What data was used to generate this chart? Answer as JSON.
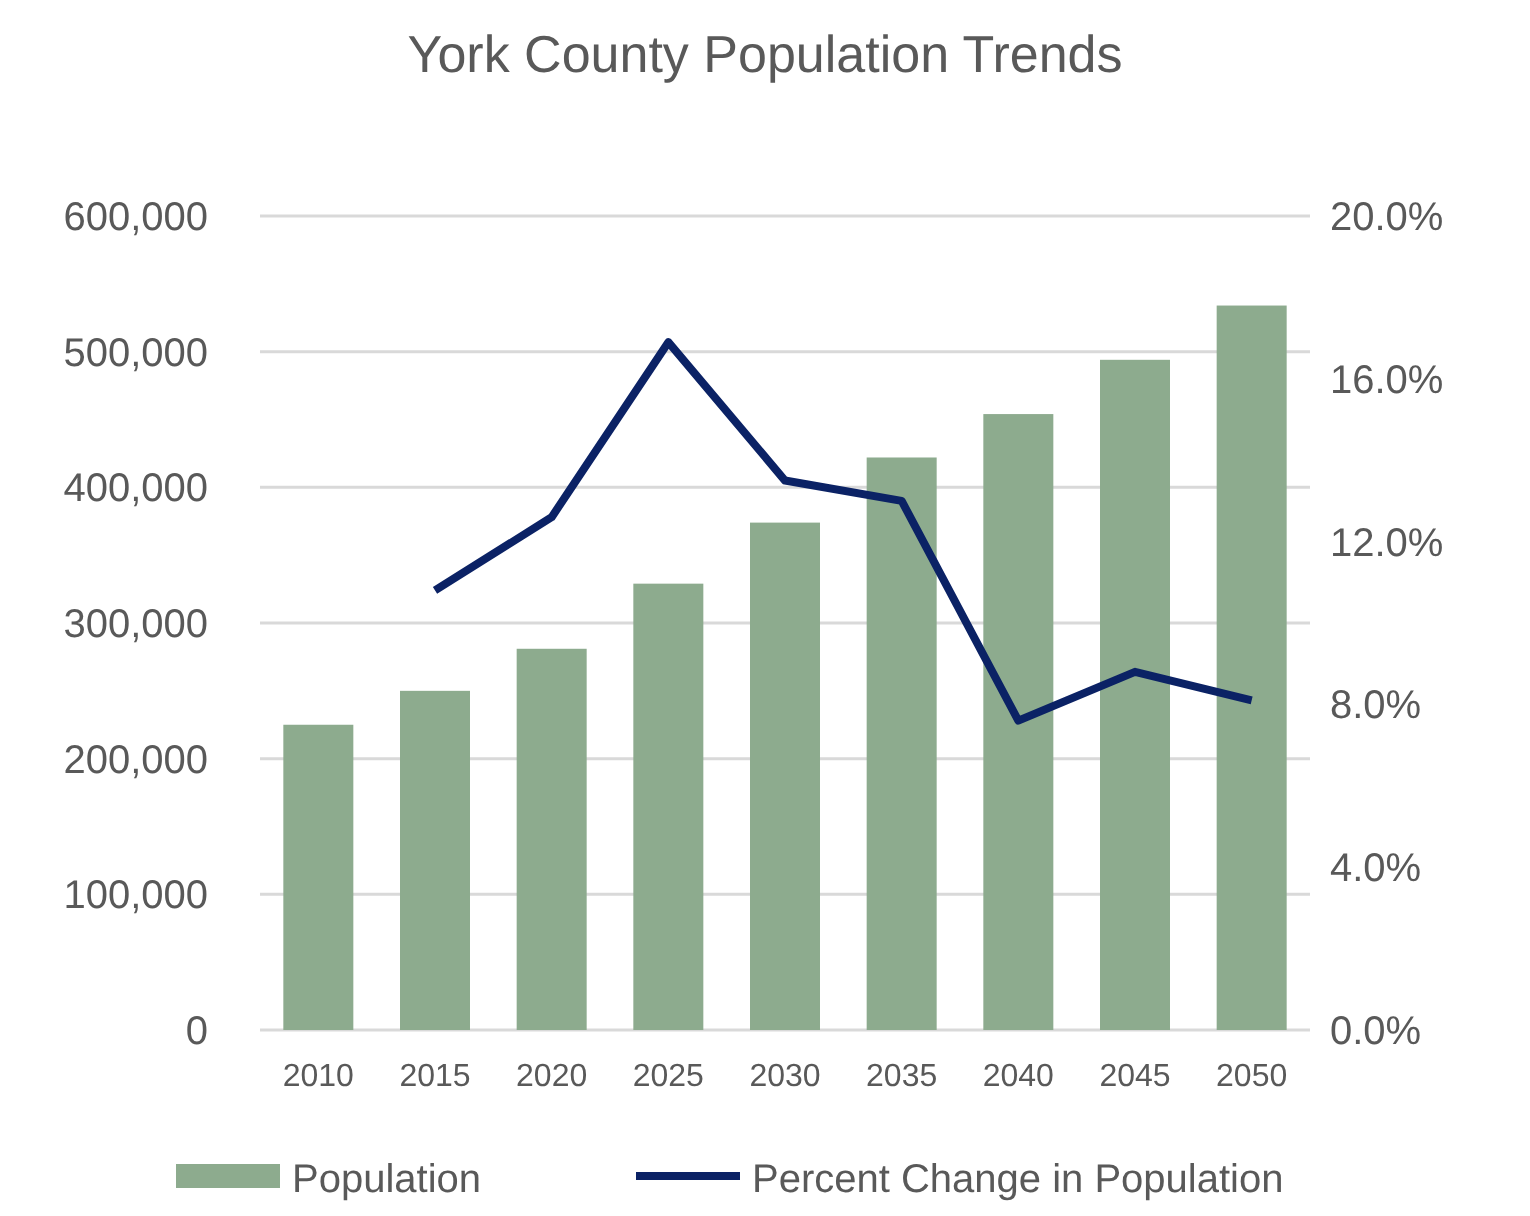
{
  "chart_data": {
    "type": "bar",
    "title": "York County Population Trends",
    "categories": [
      "2010",
      "2015",
      "2020",
      "2025",
      "2030",
      "2035",
      "2040",
      "2045",
      "2050"
    ],
    "series": [
      {
        "name": "Population",
        "color": "#8dab8e",
        "values": [
          225000,
          250000,
          281000,
          329000,
          374000,
          422000,
          454000,
          494000,
          534000
        ]
      },
      {
        "name": "Percent Change in Population",
        "type": "line",
        "axis": "y2",
        "color": "#0b2265",
        "values": [
          null,
          10.8,
          12.6,
          16.9,
          13.5,
          13.0,
          7.6,
          8.8,
          8.1
        ]
      }
    ],
    "ylim": [
      0,
      600000
    ],
    "yticks": [
      {
        "value": 0,
        "label": "0"
      },
      {
        "value": 100000,
        "label": "100,000"
      },
      {
        "value": 200000,
        "label": "200,000"
      },
      {
        "value": 300000,
        "label": "300,000"
      },
      {
        "value": 400000,
        "label": "400,000"
      },
      {
        "value": 500000,
        "label": "500,000"
      },
      {
        "value": 600000,
        "label": "600,000"
      }
    ],
    "y2lim": [
      0,
      20
    ],
    "y2ticks": [
      {
        "value": 0,
        "label": "0.0%"
      },
      {
        "value": 4,
        "label": "4.0%"
      },
      {
        "value": 8,
        "label": "8.0%"
      },
      {
        "value": 12,
        "label": "12.0%"
      },
      {
        "value": 16,
        "label": "16.0%"
      },
      {
        "value": 20,
        "label": "20.0%"
      }
    ],
    "grid": "y",
    "legend": "bottom",
    "marker": "none"
  }
}
